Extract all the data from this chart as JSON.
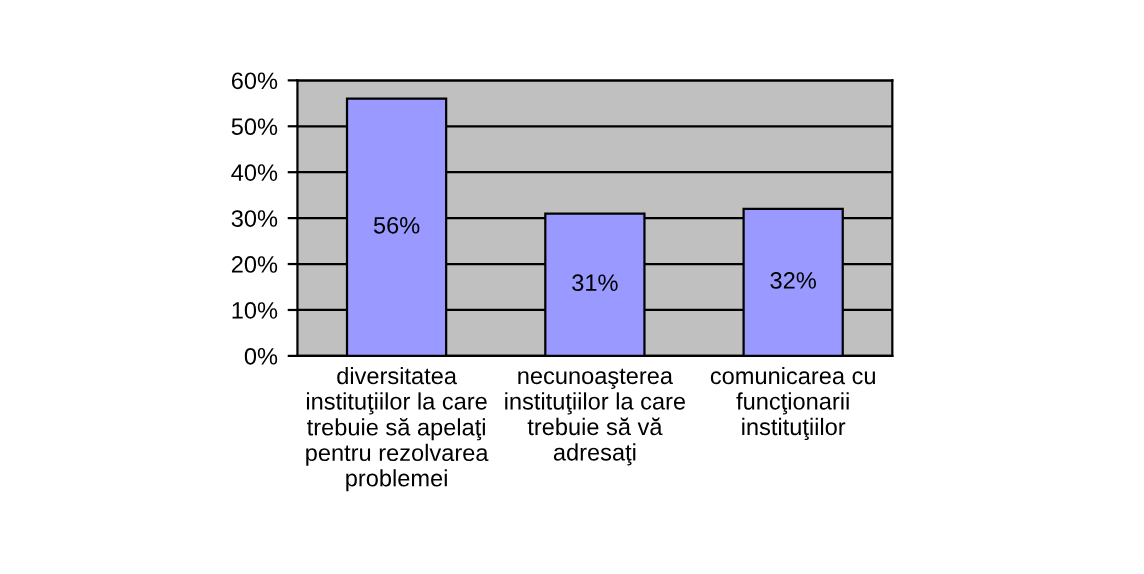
{
  "chart_data": {
    "type": "bar",
    "categories": [
      "diversitatea instituţiilor la care trebuie să apelaţi pentru rezolvarea problemei",
      "necunoaşterea instituţiilor la care trebuie să vă adresaţi",
      "comunicarea cu funcţionarii instituţiilor"
    ],
    "values": [
      56,
      31,
      32
    ],
    "value_labels": [
      "56%",
      "31%",
      "32%"
    ],
    "color": "#9999ff",
    "ylim": [
      0,
      60
    ],
    "yticks": [
      {
        "value": 0,
        "label": "0%"
      },
      {
        "value": 10,
        "label": "10%"
      },
      {
        "value": 20,
        "label": "20%"
      },
      {
        "value": 30,
        "label": "30%"
      },
      {
        "value": 40,
        "label": "40%"
      },
      {
        "value": 50,
        "label": "50%"
      },
      {
        "value": 60,
        "label": "60%"
      }
    ],
    "grid": "y"
  }
}
